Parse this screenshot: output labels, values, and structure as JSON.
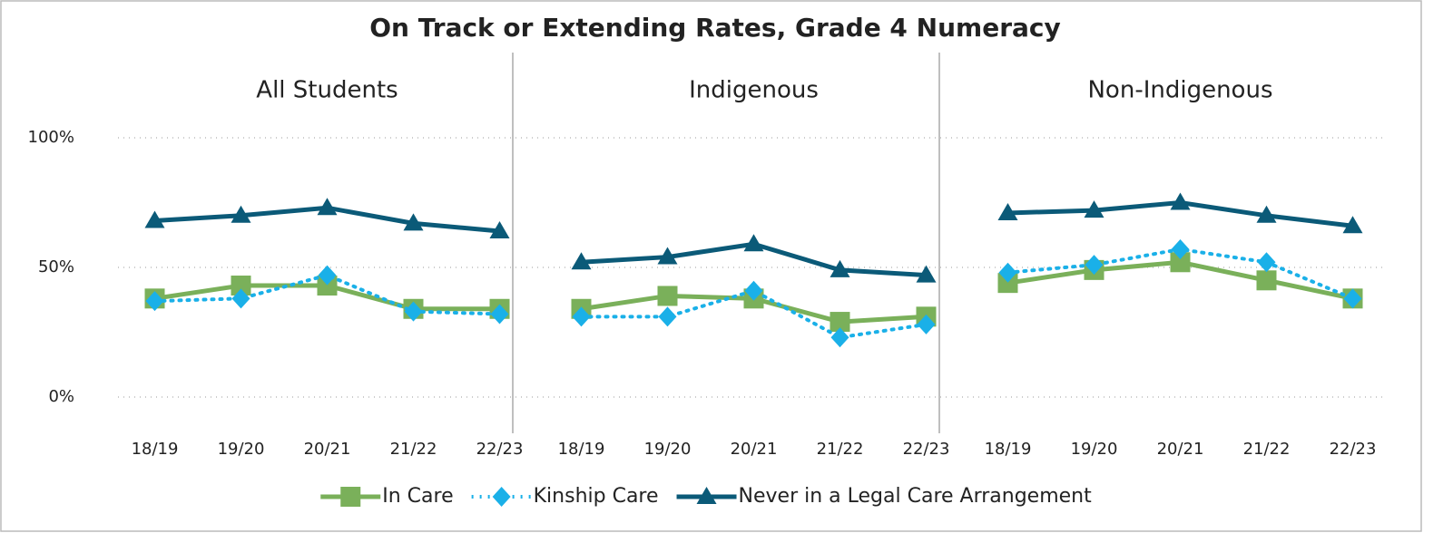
{
  "chart_data": {
    "type": "line",
    "title": "On Track or Extending Rates, Grade 4 Numeracy",
    "panels": [
      "All Students",
      "Indigenous",
      "Non-Indigenous"
    ],
    "categories": [
      "18/19",
      "19/20",
      "20/21",
      "21/22",
      "22/23"
    ],
    "ylim": [
      0,
      100
    ],
    "yticks": [
      {
        "value": 0,
        "label": "0%"
      },
      {
        "value": 50,
        "label": "50%"
      },
      {
        "value": 100,
        "label": "100%"
      }
    ],
    "grid": true,
    "legend": "bottom",
    "series": [
      {
        "name": "In Care",
        "color": "#7ab05a",
        "style": "solid",
        "marker": "square",
        "values": [
          [
            38,
            43,
            43,
            34,
            34
          ],
          [
            34,
            39,
            38,
            29,
            31
          ],
          [
            44,
            49,
            52,
            45,
            38
          ]
        ]
      },
      {
        "name": "Kinship Care",
        "color": "#1ab0e8",
        "style": "dotted",
        "marker": "diamond",
        "values": [
          [
            37,
            38,
            47,
            33,
            32
          ],
          [
            31,
            31,
            41,
            23,
            28
          ],
          [
            48,
            51,
            57,
            52,
            38
          ]
        ]
      },
      {
        "name": "Never in a Legal Care Arrangement",
        "color": "#0b5a78",
        "style": "solid",
        "marker": "triangle",
        "values": [
          [
            68,
            70,
            73,
            67,
            64
          ],
          [
            52,
            54,
            59,
            49,
            47
          ],
          [
            71,
            72,
            75,
            70,
            66
          ]
        ]
      }
    ]
  }
}
